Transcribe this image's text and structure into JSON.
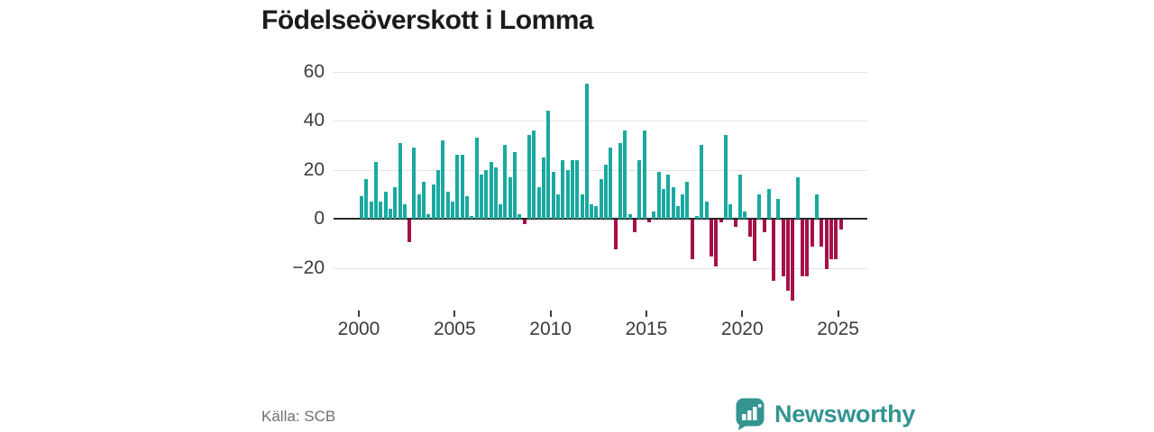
{
  "title": "Födelseöverskott i Lomma",
  "source": "Källa: SCB",
  "branding": {
    "name": "Newsworthy",
    "logo_color": "#339490"
  },
  "colors": {
    "positive": "#1aa9a0",
    "negative": "#a61048",
    "zero_axis": "#262626",
    "grid": "#e3e3e3",
    "tick_text": "#3c3c3c",
    "title_text": "#1b1b1b",
    "source_text": "#6e6e6e"
  },
  "chart_data": {
    "type": "bar",
    "title": "Födelseöverskott i Lomma",
    "frequency": "quarterly",
    "start_period": "2000Q1",
    "end_period": "2025Q1",
    "grid": "horizontal",
    "legend": "none",
    "ylim": [
      -36,
      62
    ],
    "y_ticks": [
      {
        "label": "60",
        "value": 60
      },
      {
        "label": "40",
        "value": 40
      },
      {
        "label": "20",
        "value": 20
      },
      {
        "label": "0",
        "value": 0
      },
      {
        "label": "−20",
        "value": -20
      }
    ],
    "x_ticks": [
      {
        "label": "2000",
        "year": 2000
      },
      {
        "label": "2005",
        "year": 2005
      },
      {
        "label": "2010",
        "year": 2010
      },
      {
        "label": "2015",
        "year": 2015
      },
      {
        "label": "2020",
        "year": 2020
      },
      {
        "label": "2025",
        "year": 2025
      }
    ],
    "values": [
      9,
      16,
      7,
      23,
      7,
      11,
      4,
      13,
      31,
      6,
      -9,
      29,
      10,
      15,
      2,
      14,
      20,
      32,
      11,
      7,
      26,
      26,
      9,
      1,
      33,
      18,
      20,
      23,
      21,
      6,
      30,
      17,
      27,
      2,
      -2,
      34,
      36,
      13,
      25,
      44,
      19,
      10,
      24,
      20,
      24,
      24,
      10,
      55,
      6,
      5,
      16,
      22,
      29,
      -12,
      31,
      36,
      2,
      -5,
      24,
      36,
      -1,
      3,
      19,
      12,
      18,
      13,
      5,
      10,
      15,
      -16,
      1,
      30,
      7,
      -15,
      -19,
      -1,
      34,
      6,
      -3,
      18,
      3,
      -7,
      -17,
      10,
      -5,
      12,
      -25,
      8,
      -23,
      -29,
      -33,
      17,
      -23,
      -23,
      -11,
      10,
      -11,
      -20,
      -16,
      -16,
      -4
    ]
  }
}
